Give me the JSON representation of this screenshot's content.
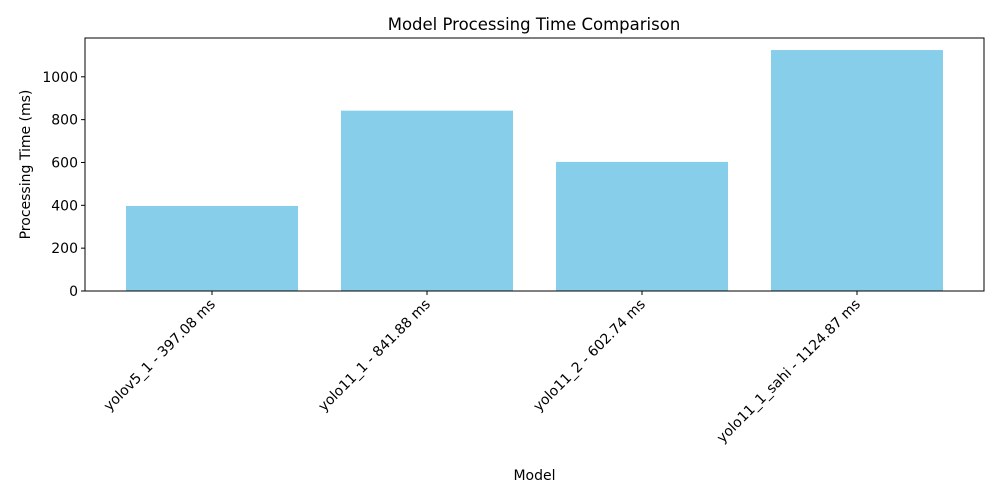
{
  "chart_data": {
    "type": "bar",
    "title": "Model Processing Time Comparison",
    "xlabel": "Model",
    "ylabel": "Processing Time (ms)",
    "categories": [
      "yolov5_1 - 397.08 ms",
      "yolo11_1 - 841.88 ms",
      "yolo11_2 - 602.74 ms",
      "yolo11_1_sahi - 1124.87 ms"
    ],
    "values": [
      397.08,
      841.88,
      602.74,
      1124.87
    ],
    "ylim": [
      0,
      1181.1
    ],
    "yticks": [
      0,
      200,
      400,
      600,
      800,
      1000
    ],
    "bar_color": "#87ceeb",
    "grid": false
  }
}
